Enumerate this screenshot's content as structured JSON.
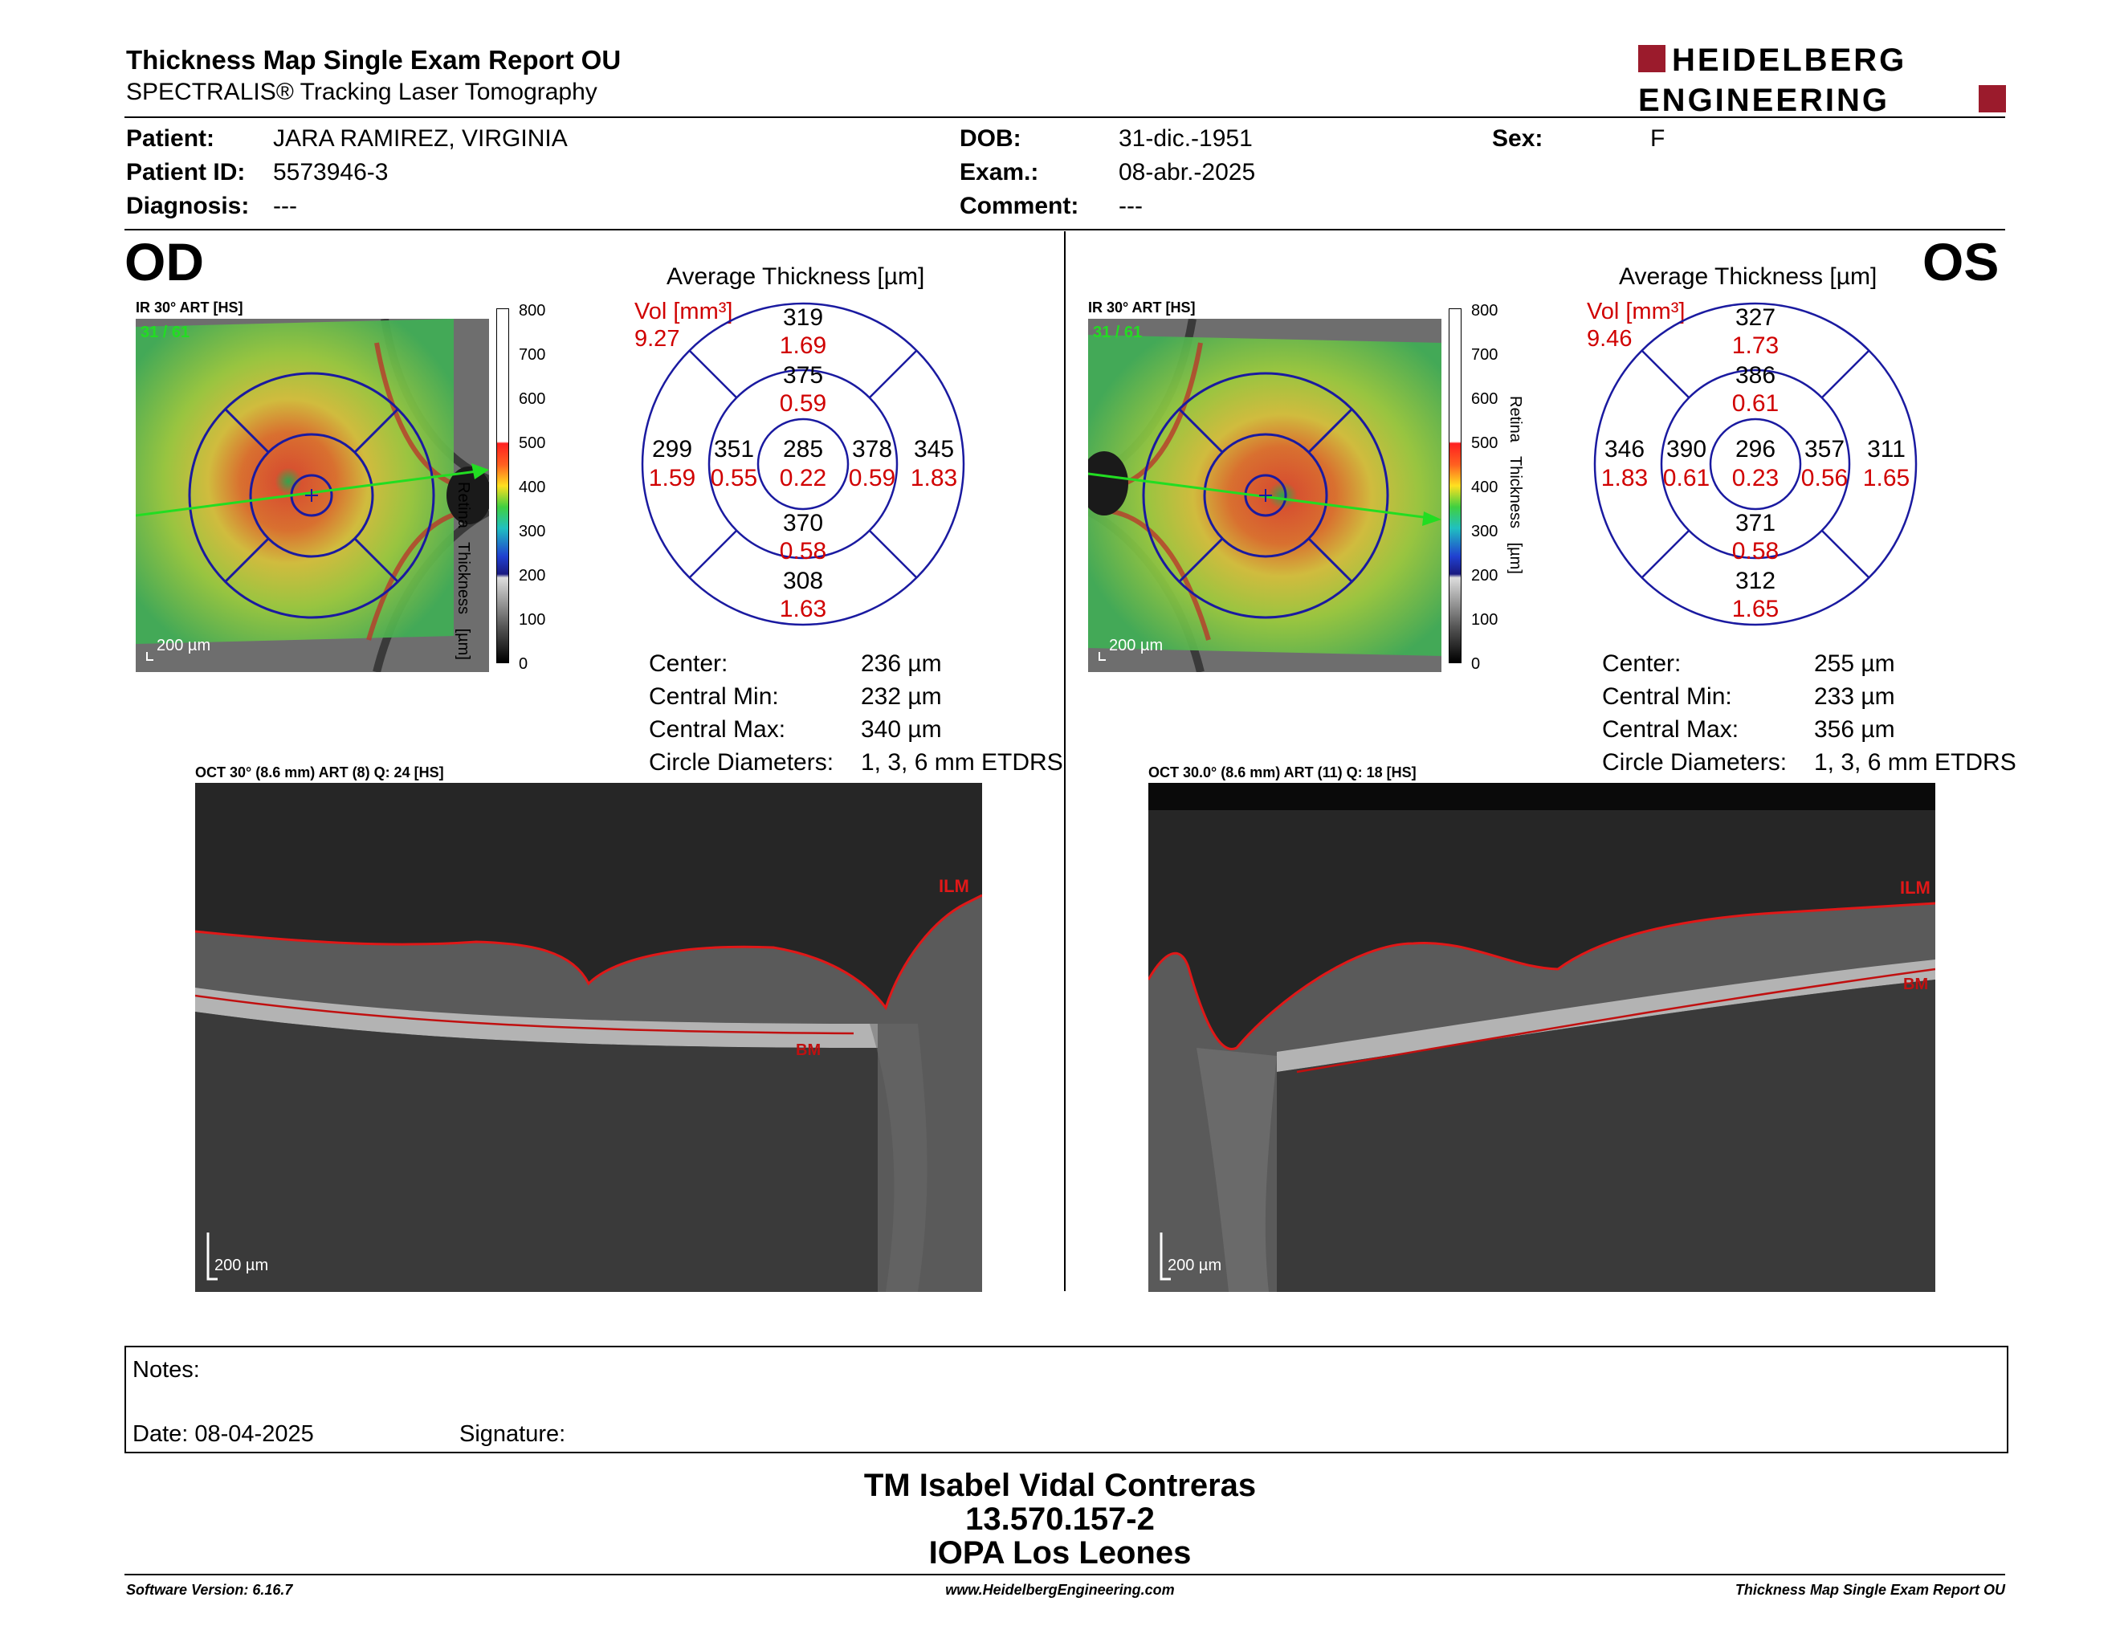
{
  "header": {
    "title": "Thickness Map Single Exam Report OU",
    "subtitle": "SPECTRALIS® Tracking Laser Tomography",
    "logo_line1": "HEIDELBERG",
    "logo_line2": "ENGINEERING"
  },
  "patient": {
    "patient_label": "Patient:",
    "patient_value": "JARA RAMIREZ, VIRGINIA",
    "id_label": "Patient ID:",
    "id_value": "5573946-3",
    "diagnosis_label": "Diagnosis:",
    "diagnosis_value": "---",
    "dob_label": "DOB:",
    "dob_value": "31-dic.-1951",
    "exam_label": "Exam.:",
    "exam_value": "08-abr.-2025",
    "comment_label": "Comment:",
    "comment_value": "---",
    "sex_label": "Sex:",
    "sex_value": "F"
  },
  "od": {
    "eye": "OD",
    "fundus_caption": "IR 30° ART [HS]",
    "fundus_counter": "31 / 61",
    "fundus_scale": "200 µm",
    "colorbar_ticks": [
      "800",
      "700",
      "600",
      "500",
      "400",
      "300",
      "200",
      "100",
      "0"
    ],
    "colorbar_label": "Retina Thickness [µm]",
    "avg_title": "Average Thickness [µm]",
    "vol_label": "Vol [mm³]",
    "vol_value": "9.27",
    "grid": {
      "center": {
        "t": "285",
        "v": "0.22"
      },
      "inner_sup": {
        "t": "375",
        "v": "0.59"
      },
      "inner_inf": {
        "t": "370",
        "v": "0.58"
      },
      "inner_left": {
        "t": "351",
        "v": "0.55"
      },
      "inner_right": {
        "t": "378",
        "v": "0.59"
      },
      "outer_sup": {
        "t": "319",
        "v": "1.69"
      },
      "outer_inf": {
        "t": "308",
        "v": "1.63"
      },
      "outer_left": {
        "t": "299",
        "v": "1.59"
      },
      "outer_right": {
        "t": "345",
        "v": "1.83"
      }
    },
    "stats": [
      {
        "label": "Center:",
        "value": "236 µm"
      },
      {
        "label": "Central Min:",
        "value": "232 µm"
      },
      {
        "label": "Central Max:",
        "value": "340 µm"
      },
      {
        "label": "Circle Diameters:",
        "value": "1, 3, 6 mm ETDRS"
      }
    ],
    "oct_caption": "OCT 30° (8.6 mm) ART (8) Q: 24 [HS]",
    "oct_ilm": "ILM",
    "oct_bm": "BM",
    "oct_scale": "200 µm"
  },
  "os": {
    "eye": "OS",
    "fundus_caption": "IR 30° ART [HS]",
    "fundus_counter": "31 / 61",
    "fundus_scale": "200 µm",
    "colorbar_ticks": [
      "800",
      "700",
      "600",
      "500",
      "400",
      "300",
      "200",
      "100",
      "0"
    ],
    "colorbar_label": "Retina Thickness [µm]",
    "avg_title": "Average Thickness [µm]",
    "vol_label": "Vol [mm³]",
    "vol_value": "9.46",
    "grid": {
      "center": {
        "t": "296",
        "v": "0.23"
      },
      "inner_sup": {
        "t": "386",
        "v": "0.61"
      },
      "inner_inf": {
        "t": "371",
        "v": "0.58"
      },
      "inner_left": {
        "t": "390",
        "v": "0.61"
      },
      "inner_right": {
        "t": "357",
        "v": "0.56"
      },
      "outer_sup": {
        "t": "327",
        "v": "1.73"
      },
      "outer_inf": {
        "t": "312",
        "v": "1.65"
      },
      "outer_left": {
        "t": "346",
        "v": "1.83"
      },
      "outer_right": {
        "t": "311",
        "v": "1.65"
      }
    },
    "stats": [
      {
        "label": "Center:",
        "value": "255 µm"
      },
      {
        "label": "Central Min:",
        "value": "233 µm"
      },
      {
        "label": "Central Max:",
        "value": "356 µm"
      },
      {
        "label": "Circle Diameters:",
        "value": "1, 3, 6 mm ETDRS"
      }
    ],
    "oct_caption": "OCT 30.0° (8.6 mm) ART (11) Q: 18 [HS]",
    "oct_ilm": "ILM",
    "oct_bm": "BM",
    "oct_scale": "200 µm"
  },
  "notes": {
    "notes_label": "Notes:",
    "date_label": "Date: 08-04-2025",
    "signature_label": "Signature:"
  },
  "signatory": {
    "name": "TM Isabel Vidal Contreras",
    "id": "13.570.157-2",
    "clinic": "IOPA Los Leones"
  },
  "footer": {
    "software": "Software Version: 6.16.7",
    "website": "www.HeidelbergEngineering.com",
    "report": "Thickness Map Single Exam Report OU"
  },
  "colors": {
    "accent_red": "#d00000",
    "grid_blue": "#1a1aa0",
    "logo_red": "#9b1b2c"
  }
}
